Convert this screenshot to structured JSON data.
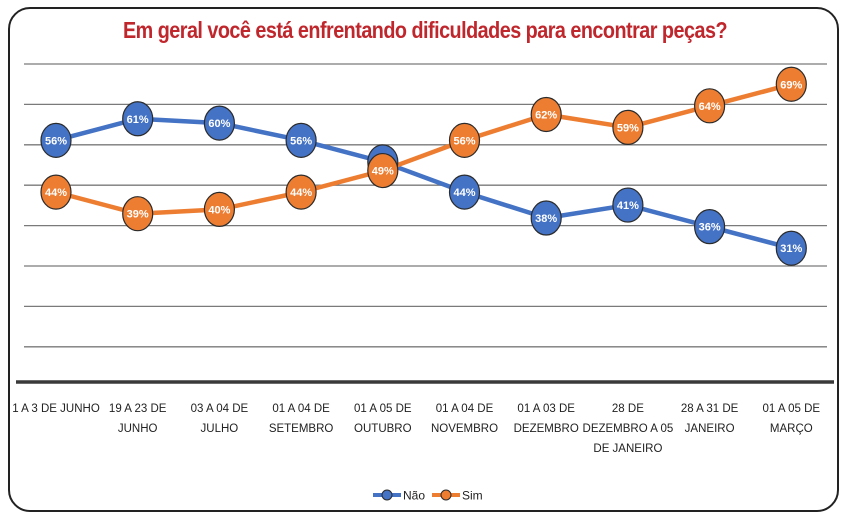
{
  "chart_data": {
    "type": "line",
    "title": "Em geral você está enfrentando dificuldades para encontrar peças?",
    "xlabel": "",
    "ylabel": "",
    "ylim": [
      0,
      73
    ],
    "grid": true,
    "legend": "bottom",
    "categories": [
      "1 A 3 DE JUNHO",
      "19 A 23 DE JUNHO",
      "03 A 04 DE JULHO",
      "01 A 04 DE SETEMBRO",
      "01 A 05 DE OUTUBRO",
      "01 A 04 DE NOVEMBRO",
      "01 A 03 DE DEZEMBRO",
      "28 DE DEZEMBRO A 05 DE JANEIRO",
      "28 A 31 DE JANEIRO",
      "01 A 05 DE MARÇO"
    ],
    "category_lines": [
      [
        "1 A 3 DE JUNHO"
      ],
      [
        "19 A 23 DE",
        "JUNHO"
      ],
      [
        "03 A 04 DE",
        "JULHO"
      ],
      [
        "01 A 04 DE",
        "SETEMBRO"
      ],
      [
        "01 A 05 DE",
        "OUTUBRO"
      ],
      [
        "01 A 04 DE",
        "NOVEMBRO"
      ],
      [
        "01 A 03 DE",
        "DEZEMBRO"
      ],
      [
        "28 DE",
        "DEZEMBRO A 05",
        "DE JANEIRO"
      ],
      [
        "28 A 31 DE",
        "JANEIRO"
      ],
      [
        "01 A 05 DE",
        "MARÇO"
      ]
    ],
    "series": [
      {
        "name": "Não",
        "color": "#4472c4",
        "values": [
          56,
          61,
          60,
          56,
          51,
          44,
          38,
          41,
          36,
          31
        ],
        "labels": [
          "56%",
          "61%",
          "60%",
          "56%",
          "51%",
          "44%",
          "38%",
          "41%",
          "36%",
          "31%"
        ]
      },
      {
        "name": "Sim",
        "color": "#ed7d31",
        "values": [
          44,
          39,
          40,
          44,
          49,
          56,
          62,
          59,
          64,
          69
        ],
        "labels": [
          "44%",
          "39%",
          "40%",
          "44%",
          "49%",
          "56%",
          "62%",
          "59%",
          "64%",
          "69%"
        ]
      }
    ]
  }
}
